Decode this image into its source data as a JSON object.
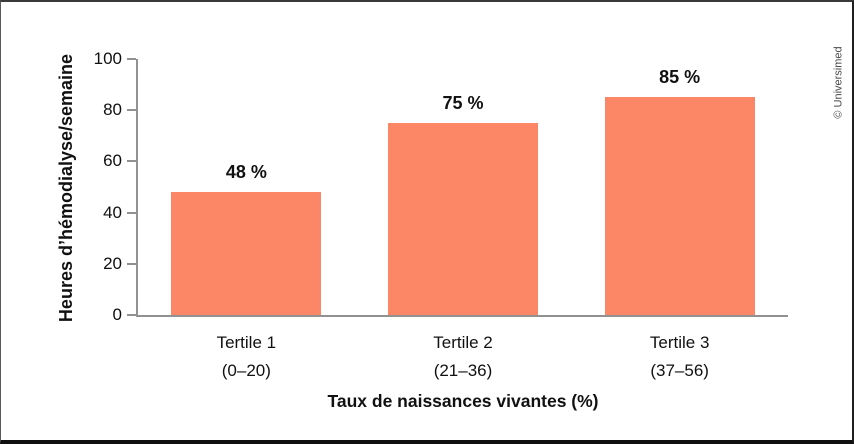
{
  "credit": "© Universimed",
  "chart_data": {
    "type": "bar",
    "title": "",
    "ylabel": "Heures d’hémodialyse/semaine",
    "xlabel": "Taux de naissances vivantes (%)",
    "ylim": [
      0,
      100
    ],
    "yticks": [
      0,
      20,
      40,
      60,
      80,
      100
    ],
    "categories": [
      {
        "label": "Tertile 1",
        "sublabel": "(0–20)"
      },
      {
        "label": "Tertile 2",
        "sublabel": "(21–36)"
      },
      {
        "label": "Tertile 3",
        "sublabel": "(37–56)"
      }
    ],
    "values": [
      48,
      75,
      85
    ],
    "value_labels": [
      "48 %",
      "75 %",
      "85 %"
    ],
    "bar_color": "#fc8766",
    "axis_color": "#919191",
    "text_color": "#111111",
    "grid": false,
    "legend_position": "none"
  }
}
